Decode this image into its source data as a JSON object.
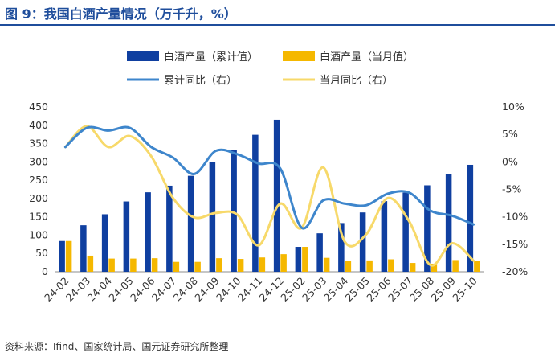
{
  "figure": {
    "title": "图 9：我国白酒产量情况（万千升，%）",
    "source": "资料来源：Ifind、国家统计局、国元证券研究所整理"
  },
  "colors": {
    "cumulative_output": "#0F3FA0",
    "monthly_output": "#F5B800",
    "cumulative_yoy": "#3E86CC",
    "monthly_yoy": "#F7D96A",
    "title": "#1F4E9C"
  },
  "chart_data": {
    "type": "bar",
    "categories": [
      "24-02",
      "24-03",
      "24-04",
      "24-05",
      "24-06",
      "24-07",
      "24-08",
      "24-09",
      "24-10",
      "24-11",
      "24-12",
      "25-02",
      "25-03",
      "25-04",
      "25-05",
      "25-06",
      "25-07",
      "25-08",
      "25-09",
      "25-10"
    ],
    "series": [
      {
        "name": "白酒产量（累计值）",
        "kind": "bar",
        "axis": "left",
        "values": [
          84,
          127,
          157,
          192,
          217,
          235,
          262,
          300,
          332,
          374,
          415,
          68,
          105,
          133,
          162,
          193,
          216,
          236,
          267,
          292
        ]
      },
      {
        "name": "白酒产量（当月值）",
        "kind": "bar",
        "axis": "left",
        "values": [
          84,
          44,
          36,
          36,
          37,
          27,
          27,
          37,
          35,
          39,
          48,
          68,
          38,
          29,
          31,
          34,
          24,
          22,
          32,
          30
        ]
      },
      {
        "name": "累计同比（右）",
        "kind": "line",
        "axis": "right",
        "values": [
          2.7,
          6.2,
          5.7,
          6.2,
          2.7,
          0.8,
          -2.2,
          2.0,
          1.4,
          -0.3,
          -1.2,
          -12.0,
          -7.0,
          -7.6,
          -7.9,
          -5.8,
          -5.6,
          -8.9,
          -9.8,
          -11.4
        ]
      },
      {
        "name": "当月同比（右）",
        "kind": "line",
        "axis": "right",
        "values": [
          2.7,
          6.5,
          2.7,
          4.7,
          1.0,
          -6.5,
          -10.1,
          -9.3,
          -9.6,
          -15.2,
          -7.6,
          -12.0,
          -1.0,
          -14.5,
          -13.2,
          -6.6,
          -10.8,
          -18.8,
          -14.8,
          -18.0
        ]
      }
    ],
    "y_left": {
      "min": 0,
      "max": 450,
      "step": 50,
      "ticks": [
        "0",
        "50",
        "100",
        "150",
        "200",
        "250",
        "300",
        "350",
        "400",
        "450"
      ]
    },
    "y_right": {
      "min": -20,
      "max": 10,
      "step": 5,
      "ticks": [
        "-20%",
        "-15%",
        "-10%",
        "-5%",
        "0%",
        "5%",
        "10%"
      ]
    },
    "legend_position": "top"
  }
}
